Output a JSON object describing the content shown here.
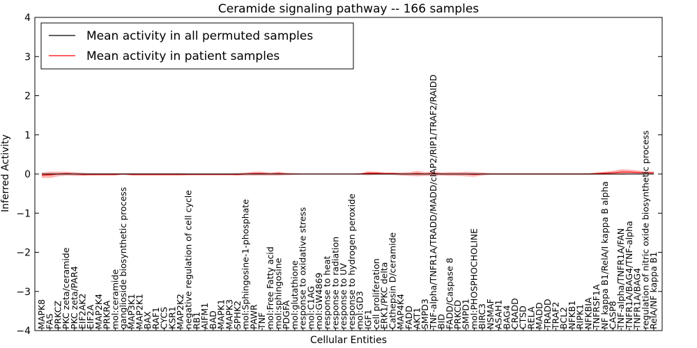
{
  "chart_data": {
    "type": "line",
    "title": "Ceramide signaling pathway -- 166 samples",
    "xlabel": "Cellular Entities",
    "ylabel": "Inferred Activity",
    "ylim": [
      -4,
      4
    ],
    "yticks": [
      "4",
      "3",
      "2",
      "1",
      "0",
      "−1",
      "−2",
      "−3",
      "−4"
    ],
    "legend_position": "top-left",
    "series": [
      {
        "name": "Mean activity in all permuted samples",
        "color": "#000000",
        "value_approx": 0.0
      },
      {
        "name": "Mean activity in patient samples",
        "color": "#ff0000",
        "value_approx": 0.0
      }
    ],
    "categories": [
      "MAPK8",
      "FAS",
      "PRKCZ",
      "PKC zeta/ceramide",
      "PKC zeta/PAR4",
      "EIF2AK2",
      "EIF2A",
      "MAP2K4",
      "PRKRA",
      "mol:ceramide",
      "ganglioside biosynthetic process",
      "MAP3K1",
      "MAP2K1",
      "BAX",
      "RAF1",
      "CYCS",
      "KSR1",
      "MAP2K2",
      "negative regulation of cell cycle",
      "RB1",
      "AIFM1",
      "BAD",
      "MAPK1",
      "MAPK3",
      "SPHK2",
      "mol:Sphingosine-1-phosphate",
      "PAWR",
      "TNF",
      "mol:Free Fatty acid",
      "mol:sphingosine",
      "PDGFA",
      "mol:glutathione",
      "response to oxidative stress",
      "mol:C1AG",
      "mol:GW4869",
      "response to heat",
      "response to radiation",
      "response to UV",
      "response to hydrogen peroxide",
      "mol:GD3",
      "IGF1",
      "cell proliferation",
      "ERK1/PKC delta",
      "Cathepsin D/ceramide",
      "MAP4K4",
      "FADD",
      "AKT1",
      "SMPD3",
      "TNF-alpha/TNFR1A/TRADD/MADD/cIAP2/RIP1/TRAF2/RAIDD",
      "BID",
      "FADD/Caspase 8",
      "PRKCD",
      "SMPD1",
      "mol:PHOSPHOCHOLINE",
      "BIRC3",
      "NSMAF",
      "ASAH1",
      "BAG4",
      "CRADD",
      "CTSD",
      "RELA",
      "MADD",
      "TRADD",
      "TRAF2",
      "BCL2",
      "NFKB1",
      "RIPK1",
      "NFKBIA",
      "TNFRSF1A",
      "NF kappa B1/RelA/I kappa B alpha",
      "CASP8",
      "TNF-alpha/TNFR1A/FAN",
      "TNFR1A/BAG4/TNF-alpha",
      "TNFR1A/BAG4",
      "regulation of nitric oxide biosynthetic process",
      "RelA/NF kappa B1"
    ],
    "patient_mean": [
      -0.03,
      -0.02,
      0.0,
      0.01,
      0.0,
      -0.01,
      -0.01,
      -0.01,
      -0.01,
      -0.01,
      0.0,
      -0.01,
      -0.01,
      -0.01,
      -0.01,
      -0.01,
      -0.01,
      -0.01,
      -0.01,
      -0.01,
      -0.01,
      -0.01,
      -0.01,
      -0.01,
      -0.01,
      0.0,
      0.01,
      0.01,
      0.0,
      0.01,
      0.0,
      0.0,
      0.0,
      0.0,
      0.0,
      0.0,
      0.0,
      0.0,
      0.0,
      0.0,
      0.02,
      0.02,
      0.01,
      0.01,
      0.0,
      0.0,
      0.01,
      0.0,
      0.01,
      0.0,
      0.0,
      0.0,
      0.0,
      -0.01,
      0.0,
      0.0,
      0.0,
      0.0,
      0.0,
      0.0,
      0.0,
      0.0,
      0.0,
      0.0,
      0.0,
      0.0,
      0.0,
      0.0,
      0.01,
      0.02,
      0.03,
      0.05,
      0.05,
      0.04,
      0.03,
      0.03
    ],
    "patient_band": [
      0.07,
      0.08,
      0.06,
      0.05,
      0.05,
      0.04,
      0.03,
      0.03,
      0.03,
      0.03,
      0.02,
      0.03,
      0.03,
      0.03,
      0.03,
      0.03,
      0.03,
      0.03,
      0.02,
      0.02,
      0.02,
      0.02,
      0.02,
      0.02,
      0.03,
      0.04,
      0.05,
      0.05,
      0.04,
      0.05,
      0.03,
      0.02,
      0.01,
      0.01,
      0.01,
      0.01,
      0.01,
      0.01,
      0.01,
      0.02,
      0.05,
      0.04,
      0.03,
      0.03,
      0.04,
      0.05,
      0.07,
      0.05,
      0.06,
      0.04,
      0.05,
      0.05,
      0.06,
      0.06,
      0.04,
      0.02,
      0.02,
      0.02,
      0.02,
      0.02,
      0.02,
      0.02,
      0.02,
      0.02,
      0.02,
      0.02,
      0.02,
      0.02,
      0.03,
      0.04,
      0.05,
      0.07,
      0.06,
      0.05,
      0.04,
      0.03
    ],
    "permuted_mean": 0.0
  }
}
